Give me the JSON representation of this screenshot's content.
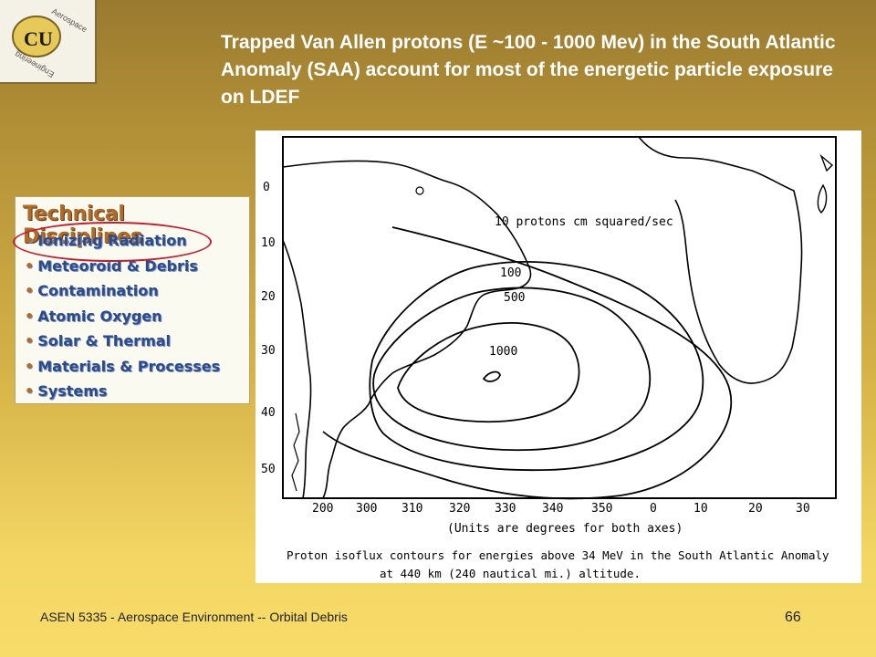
{
  "slide": {
    "title": "Trapped Van Allen protons (E ~100 - 1000 Mev) in the South Atlantic Anomaly (SAA) account for most of the energetic particle exposure on LDEF",
    "footer": "ASEN 5335 - Aerospace Environment -- Orbital Debris",
    "page_number": "66"
  },
  "logo": {
    "text_top": "Aerospace",
    "text_bottom": "Engineering",
    "monogram": "CU"
  },
  "disciplines": {
    "heading": "Technical Disciplines",
    "items": [
      "Ionizing Radiation",
      "Meteoroid & Debris",
      "Contamination",
      "Atomic Oxygen",
      "Solar & Thermal",
      "Materials & Processes",
      "Systems"
    ],
    "highlighted_item": "Ionizing Radiation",
    "highlight_color": "#c02030"
  },
  "map": {
    "y_ticks": [
      "0",
      "10",
      "20",
      "30",
      "40",
      "50"
    ],
    "x_ticks": [
      "200",
      "300",
      "310",
      "320",
      "330",
      "340",
      "350",
      "0",
      "10",
      "20",
      "30"
    ],
    "contour_labels": {
      "c10": "10 protons cm squared/sec",
      "c100": "100",
      "c500": "500",
      "c1000": "1000"
    },
    "units_note": "(Units are degrees for both axes)",
    "caption_line1": "Proton isoflux contours for energies above 34 MeV in the South Atlantic Anomaly",
    "caption_line2": "at 440 km (240 nautical mi.) altitude."
  }
}
